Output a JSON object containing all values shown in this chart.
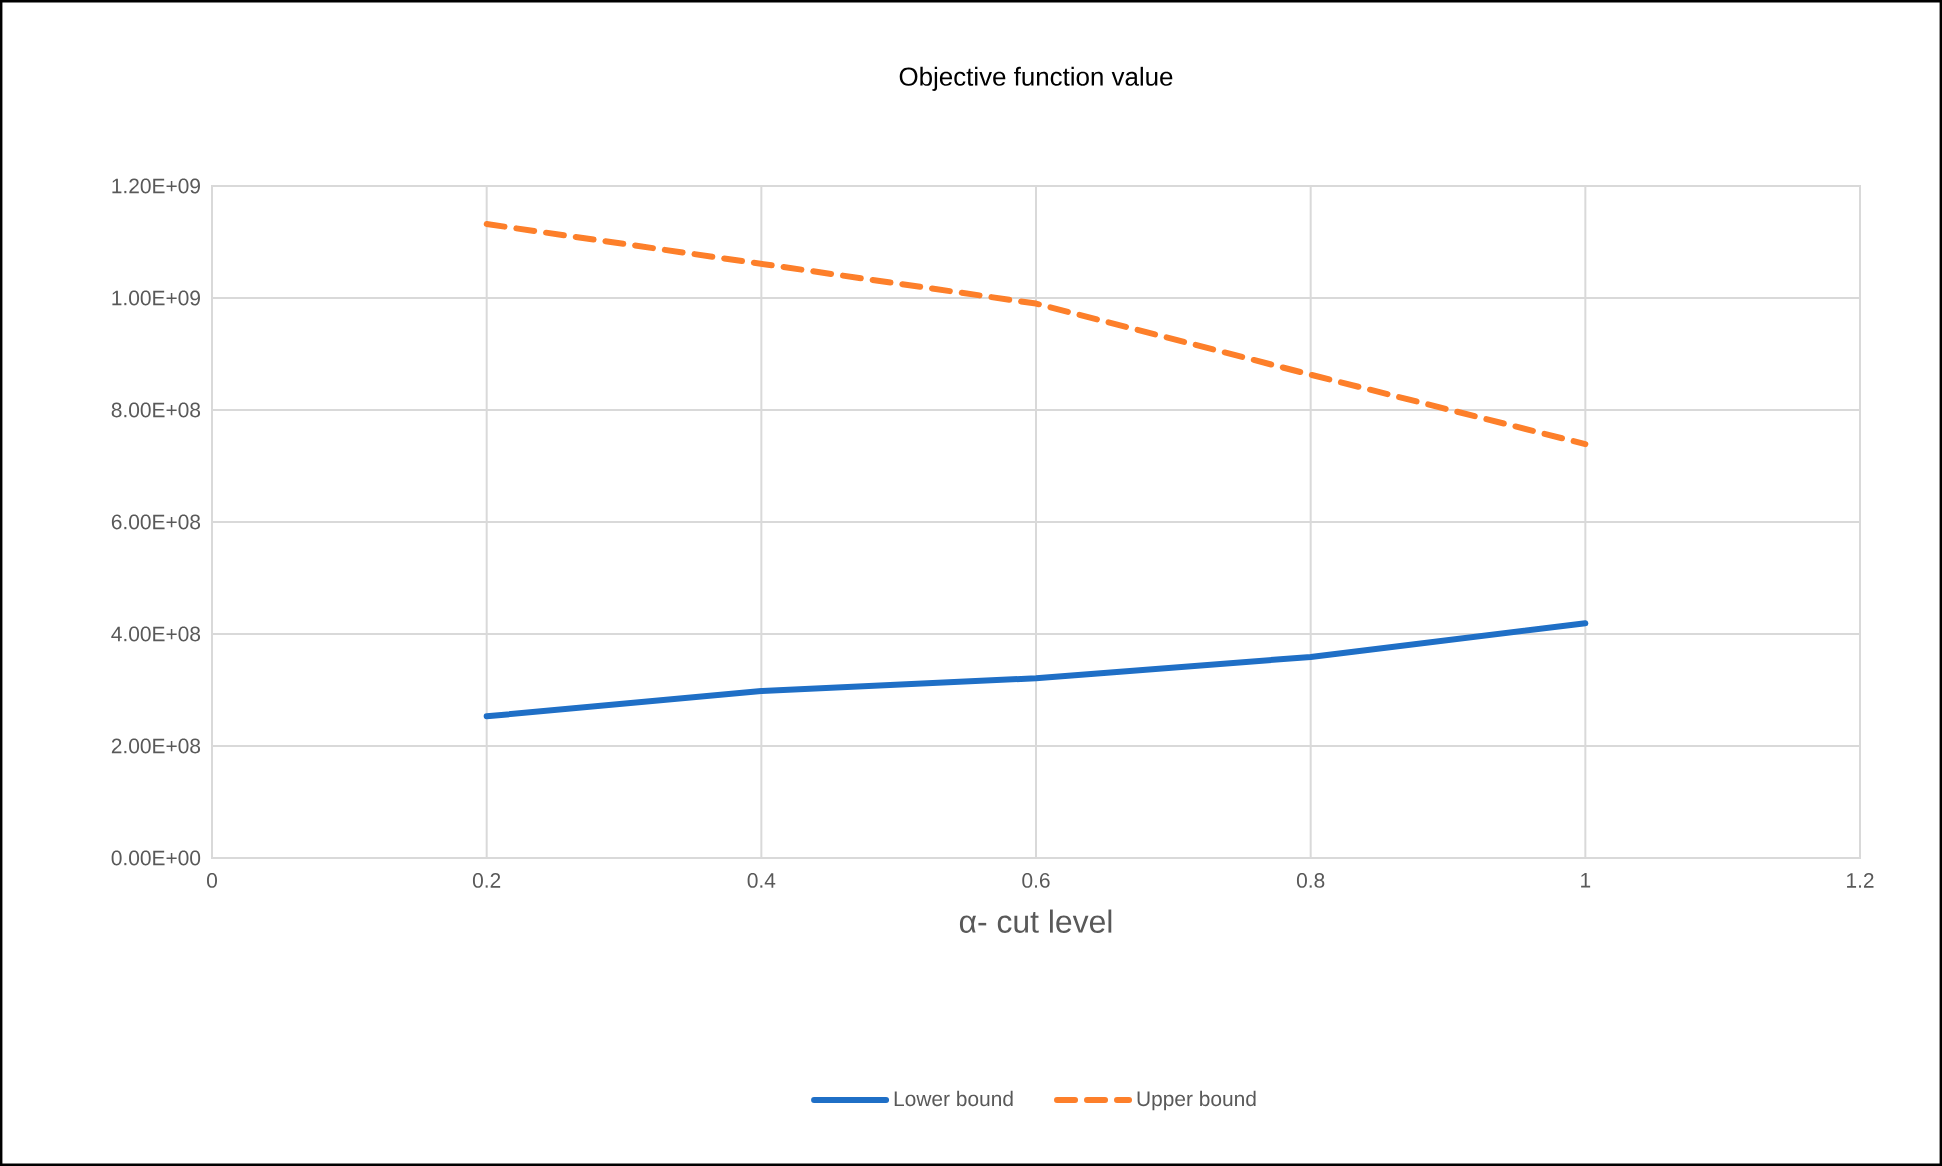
{
  "chart_data": {
    "type": "line",
    "title": "Objective function value",
    "xlabel": "α- cut level",
    "x": [
      0.2,
      0.4,
      0.6,
      0.8,
      1
    ],
    "series": [
      {
        "name": "Lower bound",
        "color": "#1f6fc6",
        "line_style": "solid",
        "values": [
          253000000.0,
          298000000.0,
          321000000.0,
          359000000.0,
          419000000.0
        ]
      },
      {
        "name": "Upper bound",
        "color": "#fd7f2a",
        "line_style": "dashed",
        "values": [
          1132000000.0,
          1061000000.0,
          990000000.0,
          863000000.0,
          739000000.0
        ]
      }
    ],
    "xlim": [
      0,
      1.2
    ],
    "xticks": [
      0,
      0.2,
      0.4,
      0.6,
      0.8,
      1,
      1.2
    ],
    "ylim": [
      0,
      1200000000.0
    ],
    "yticks": [
      {
        "value": 0,
        "label": "0.00E+00"
      },
      {
        "value": 200000000.0,
        "label": "2.00E+08"
      },
      {
        "value": 400000000.0,
        "label": "4.00E+08"
      },
      {
        "value": 600000000.0,
        "label": "6.00E+08"
      },
      {
        "value": 800000000.0,
        "label": "8.00E+08"
      },
      {
        "value": 1000000000.0,
        "label": "1.00E+09"
      },
      {
        "value": 1200000000.0,
        "label": "1.20E+09"
      }
    ],
    "grid": true,
    "legend": "bottom"
  }
}
